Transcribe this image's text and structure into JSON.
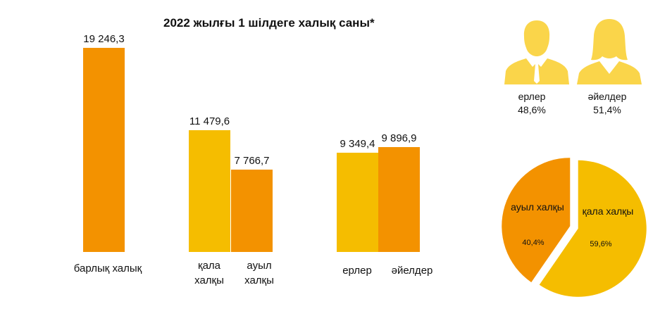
{
  "colors": {
    "orange": "#F39200",
    "yellow": "#F5BD00",
    "icon_yellow": "#FAD54A"
  },
  "chart_data": [
    {
      "type": "bar",
      "title": "2022 жылғы 1 шілдеге халық саны*",
      "categories": [
        "барлық халық",
        "қала халқы",
        "ауыл халқы",
        "ерлер",
        "әйелдер"
      ],
      "values": [
        19246.3,
        11479.6,
        7766.7,
        9349.4,
        9896.9
      ],
      "value_labels": [
        "19 246,3",
        "11 479,6",
        "7 766,7",
        "9 349,4",
        "9 896,9"
      ],
      "colors": [
        "#F39200",
        "#F5BD00",
        "#F39200",
        "#F5BD00",
        "#F39200"
      ],
      "grid": false,
      "legend": "none"
    },
    {
      "type": "pie",
      "slices": [
        {
          "label": "қала халқы",
          "value": 59.6,
          "pct_label": "59,6%",
          "color": "#F5BD00"
        },
        {
          "label": "ауыл халқы",
          "value": 40.4,
          "pct_label": "40,4%",
          "color": "#F39200"
        }
      ]
    }
  ],
  "gender": {
    "men": {
      "icon": "man-silhouette-icon",
      "label": "ерлер",
      "pct": "48,6%"
    },
    "women": {
      "icon": "woman-silhouette-icon",
      "label": "әйелдер",
      "pct": "51,4%"
    }
  }
}
